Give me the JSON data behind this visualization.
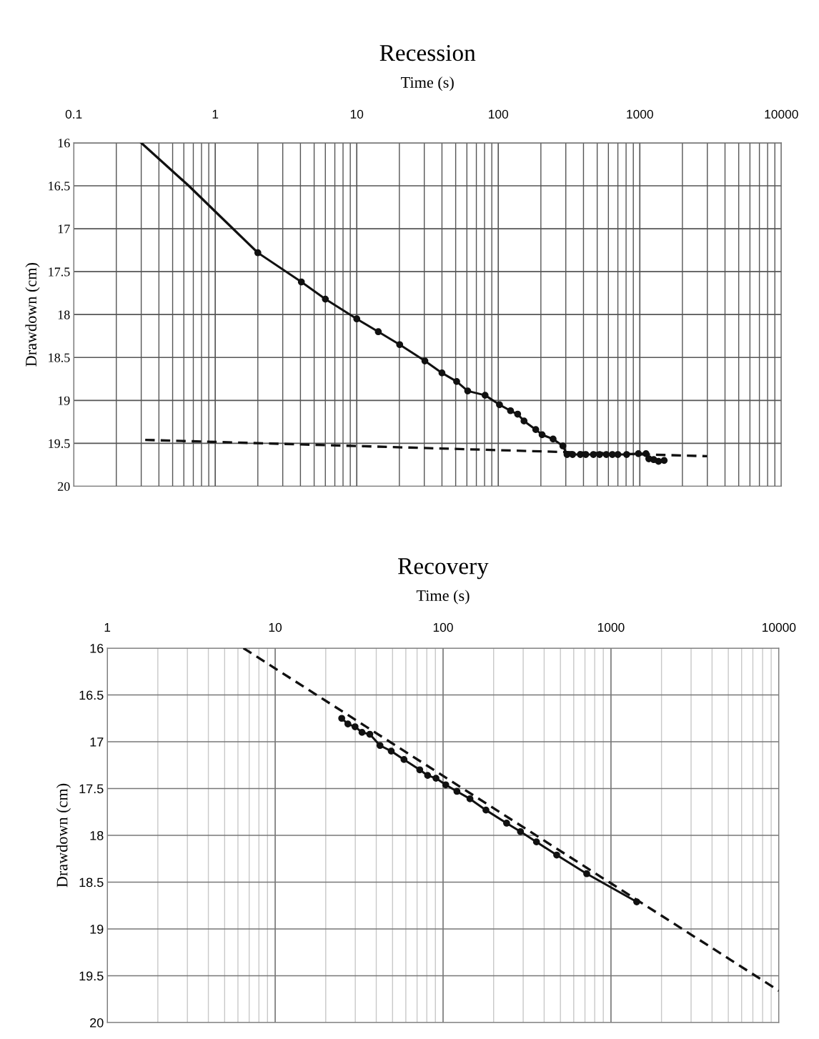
{
  "chart_data": [
    {
      "type": "line",
      "title": "Recession",
      "xlabel": "Time (s)",
      "ylabel": "Drawdown (cm)",
      "log": "x",
      "grid": true,
      "xlim": [
        0.1,
        10000
      ],
      "xticks": [
        0.1,
        1,
        10,
        100,
        1000,
        10000
      ],
      "ylim": [
        20,
        16
      ],
      "yticks": [
        16,
        16.5,
        17,
        17.5,
        18,
        18.5,
        19,
        19.5,
        20
      ],
      "series": [
        {
          "color": "#111111",
          "marker": "none",
          "line_style": "solid",
          "x": [
            0.3,
            0.65,
            1,
            2
          ],
          "values": [
            16,
            16.5,
            16.8,
            17.28
          ]
        },
        {
          "color": "#111111",
          "marker": "circle",
          "line_style": "solid",
          "x": [
            2,
            4.06,
            6.0,
            10,
            14.2,
            20.1,
            30.3,
            40,
            50.8,
            60.8,
            80.7,
            102,
            122,
            137,
            152,
            184,
            204,
            244,
            286,
            306,
            335,
            380,
            415,
            470,
            520,
            580,
            640,
            700,
            807,
            977,
            1106,
            1158,
            1254,
            1356,
            1486
          ],
          "values": [
            17.28,
            17.62,
            17.82,
            18.05,
            18.2,
            18.35,
            18.54,
            18.68,
            18.78,
            18.89,
            18.94,
            19.05,
            19.12,
            19.16,
            19.24,
            19.34,
            19.4,
            19.45,
            19.53,
            19.63,
            19.63,
            19.63,
            19.63,
            19.63,
            19.63,
            19.63,
            19.63,
            19.63,
            19.63,
            19.62,
            19.62,
            19.68,
            19.69,
            19.71,
            19.7
          ]
        },
        {
          "color": "#111111",
          "marker": "none",
          "line_style": "dashed",
          "x": [
            0.32,
            2990
          ],
          "values": [
            19.46,
            19.65
          ]
        }
      ]
    },
    {
      "type": "line",
      "title": "Recovery",
      "xlabel": "Time (s)",
      "ylabel": "Drawdown (cm)",
      "log": "x",
      "grid": true,
      "xlim": [
        1,
        10000
      ],
      "xticks": [
        1,
        10,
        100,
        1000,
        10000
      ],
      "ylim": [
        20,
        16
      ],
      "yticks": [
        16,
        16.5,
        17,
        17.5,
        18,
        18.5,
        19,
        19.5,
        20
      ],
      "series": [
        {
          "color": "#111111",
          "marker": "circle",
          "line_style": "solid",
          "x": [
            24.9,
            27.1,
            29.9,
            32.9,
            36.6,
            42.1,
            49.1,
            58.5,
            72.6,
            80.9,
            90.7,
            103.7,
            120.9,
            144.6,
            180,
            239,
            289,
            360,
            475,
            717,
            1423
          ],
          "values": [
            16.75,
            16.81,
            16.84,
            16.9,
            16.92,
            17.04,
            17.1,
            17.19,
            17.3,
            17.36,
            17.39,
            17.46,
            17.53,
            17.61,
            17.73,
            17.87,
            17.96,
            18.07,
            18.21,
            18.41,
            18.71
          ]
        },
        {
          "color": "#111111",
          "marker": "none",
          "line_style": "dashed",
          "x": [
            6.47,
            10000
          ],
          "values": [
            16,
            19.66
          ]
        }
      ]
    }
  ]
}
